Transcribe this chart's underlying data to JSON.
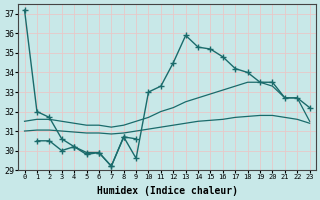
{
  "xlabel": "Humidex (Indice chaleur)",
  "background_color": "#c8e8e8",
  "grid_color": "#d8eded",
  "line_color": "#1a6b6b",
  "xlim": [
    -0.5,
    23.5
  ],
  "ylim": [
    29,
    37.5
  ],
  "yticks": [
    29,
    30,
    31,
    32,
    33,
    34,
    35,
    36,
    37
  ],
  "xticks": [
    0,
    1,
    2,
    3,
    4,
    5,
    6,
    7,
    8,
    9,
    10,
    11,
    12,
    13,
    14,
    15,
    16,
    17,
    18,
    19,
    20,
    21,
    22,
    23
  ],
  "series": [
    {
      "x": [
        0,
        1,
        2,
        3,
        4,
        5,
        6,
        7,
        8,
        9,
        10,
        11,
        12,
        13,
        14,
        15,
        16,
        17,
        18,
        19,
        20,
        21,
        22,
        23
      ],
      "y": [
        37.2,
        32.0,
        31.7,
        30.6,
        30.2,
        29.9,
        29.9,
        29.2,
        30.7,
        29.6,
        33.0,
        33.3,
        34.5,
        35.9,
        35.3,
        35.2,
        34.8,
        34.2,
        34.0,
        33.5,
        33.5,
        32.7,
        32.7,
        32.2
      ],
      "marker": "+",
      "markersize": 4,
      "linewidth": 1.0
    },
    {
      "x": [
        0,
        1,
        2,
        3,
        4,
        5,
        6,
        7,
        8,
        9,
        10,
        11,
        12,
        13,
        14,
        15,
        16,
        17,
        18,
        19,
        20,
        21,
        22,
        23
      ],
      "y": [
        31.5,
        31.6,
        31.6,
        31.5,
        31.4,
        31.3,
        31.3,
        31.2,
        31.3,
        31.5,
        31.7,
        32.0,
        32.2,
        32.5,
        32.7,
        32.9,
        33.1,
        33.3,
        33.5,
        33.5,
        33.3,
        32.7,
        32.7,
        31.5
      ],
      "marker": null,
      "markersize": 0,
      "linewidth": 0.9
    },
    {
      "x": [
        0,
        1,
        2,
        3,
        4,
        5,
        6,
        7,
        8,
        9,
        10,
        11,
        12,
        13,
        14,
        15,
        16,
        17,
        18,
        19,
        20,
        21,
        22,
        23
      ],
      "y": [
        31.0,
        31.05,
        31.05,
        31.0,
        30.95,
        30.9,
        30.9,
        30.85,
        30.9,
        31.0,
        31.1,
        31.2,
        31.3,
        31.4,
        31.5,
        31.55,
        31.6,
        31.7,
        31.75,
        31.8,
        31.8,
        31.7,
        31.6,
        31.4
      ],
      "marker": null,
      "markersize": 0,
      "linewidth": 0.9
    },
    {
      "x": [
        1,
        2,
        3,
        4,
        5,
        6,
        7,
        8,
        9
      ],
      "y": [
        30.5,
        30.5,
        30.0,
        30.2,
        29.8,
        29.9,
        29.2,
        30.7,
        30.6
      ],
      "marker": "+",
      "markersize": 4,
      "linewidth": 1.0
    }
  ]
}
